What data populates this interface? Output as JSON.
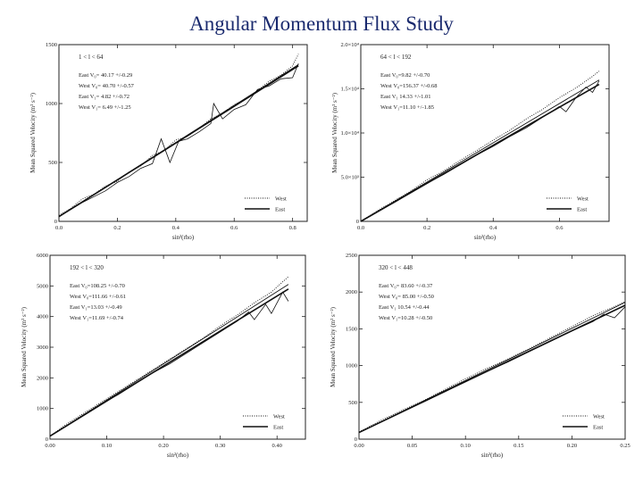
{
  "page": {
    "title": "Angular Momentum Flux Study"
  },
  "chart_data": [
    {
      "type": "line",
      "range_label": "1 < l < 64",
      "xlabel": "sin²(rho)",
      "ylabel": "Mean Squared Velocity (m² s⁻²)",
      "xlim": [
        0,
        0.85
      ],
      "ylim": [
        0,
        1500
      ],
      "xticks": [
        "0.0",
        "0.2",
        "0.4",
        "0.6",
        "0.8"
      ],
      "xtick_values": [
        0,
        0.2,
        0.4,
        0.6,
        0.8
      ],
      "yticks": [
        "0",
        "500",
        "1000",
        "1500"
      ],
      "ytick_values": [
        0,
        500,
        1000,
        1500
      ],
      "annotations": [
        "East V₀= 40.17 +/-0.29",
        "West V₀= 40.70 +/-0.57",
        "East V₁= 4.82 +/-0.72",
        "West V₁= 6.49 +/-1.25"
      ],
      "legend": [
        "West",
        "East"
      ],
      "legend_position": "bottom-right",
      "fit_lines": [
        {
          "name": "West",
          "x": [
            0,
            0.82
          ],
          "y": [
            40,
            1330
          ]
        },
        {
          "name": "East",
          "x": [
            0,
            0.82
          ],
          "y": [
            40,
            1320
          ]
        }
      ],
      "series": [
        {
          "name": "West",
          "style": "dotted",
          "x": [
            0,
            0.04,
            0.08,
            0.12,
            0.16,
            0.2,
            0.24,
            0.28,
            0.32,
            0.36,
            0.4,
            0.44,
            0.48,
            0.52,
            0.56,
            0.6,
            0.64,
            0.68,
            0.72,
            0.76,
            0.8,
            0.82
          ],
          "y": [
            50,
            110,
            190,
            230,
            300,
            340,
            420,
            470,
            560,
            600,
            690,
            720,
            790,
            870,
            920,
            990,
            1040,
            1110,
            1190,
            1240,
            1320,
            1420
          ]
        },
        {
          "name": "East",
          "style": "solid",
          "x": [
            0,
            0.04,
            0.08,
            0.12,
            0.16,
            0.2,
            0.24,
            0.28,
            0.32,
            0.35,
            0.38,
            0.41,
            0.44,
            0.48,
            0.52,
            0.53,
            0.56,
            0.6,
            0.64,
            0.68,
            0.72,
            0.76,
            0.8,
            0.82
          ],
          "y": [
            40,
            100,
            160,
            210,
            260,
            330,
            380,
            450,
            490,
            700,
            500,
            680,
            700,
            760,
            830,
            1000,
            870,
            950,
            990,
            1120,
            1150,
            1210,
            1220,
            1340
          ]
        }
      ]
    },
    {
      "type": "line",
      "range_label": "64 < l < 192",
      "xlabel": "sin²(rho)",
      "ylabel": "Mean Squared Velocity (m² s⁻²)",
      "xlim": [
        0,
        0.75
      ],
      "ylim": [
        0,
        20000
      ],
      "xticks": [
        "0.0",
        "0.2",
        "0.4",
        "0.6"
      ],
      "xtick_values": [
        0,
        0.2,
        0.4,
        0.6
      ],
      "yticks": [
        "0",
        "5.0×10³",
        "1.0×10⁴",
        "1.5×10⁴",
        "2.0×10⁴"
      ],
      "ytick_values": [
        0,
        5000,
        10000,
        15000,
        20000
      ],
      "annotations": [
        "East V₀=9.82 +/-0.70",
        "West V₀=156.37 +/-0.68",
        "East V₁ 14.33 +/-1.01",
        "West V₁=11.10 +/-1.85"
      ],
      "legend": [
        "West",
        "East"
      ],
      "legend_position": "bottom-right",
      "fit_lines": [
        {
          "name": "West",
          "x": [
            0,
            0.72
          ],
          "y": [
            0,
            16000
          ]
        },
        {
          "name": "East",
          "x": [
            0,
            0.72
          ],
          "y": [
            0,
            15500
          ]
        }
      ],
      "series": [
        {
          "name": "West",
          "style": "dotted",
          "x": [
            0,
            0.05,
            0.1,
            0.15,
            0.2,
            0.25,
            0.3,
            0.35,
            0.4,
            0.45,
            0.5,
            0.55,
            0.6,
            0.65,
            0.7,
            0.72
          ],
          "y": [
            0,
            1200,
            2300,
            3400,
            4700,
            5700,
            6900,
            8000,
            9200,
            10300,
            11600,
            12700,
            14000,
            15100,
            16400,
            17000
          ]
        },
        {
          "name": "East",
          "style": "solid",
          "x": [
            0,
            0.05,
            0.1,
            0.15,
            0.2,
            0.25,
            0.3,
            0.35,
            0.4,
            0.45,
            0.5,
            0.55,
            0.6,
            0.62,
            0.65,
            0.68,
            0.7,
            0.72
          ],
          "y": [
            0,
            1100,
            2100,
            3200,
            4300,
            5300,
            6400,
            7500,
            8500,
            9600,
            10600,
            11800,
            13000,
            12400,
            14000,
            15200,
            14600,
            15900
          ]
        }
      ]
    },
    {
      "type": "line",
      "range_label": "192 < l < 320",
      "xlabel": "sin²(rho)",
      "ylabel": "Mean Squared Velocity (m² s⁻²)",
      "xlim": [
        0,
        0.45
      ],
      "ylim": [
        0,
        6000
      ],
      "xticks": [
        "0.00",
        "0.10",
        "0.20",
        "0.30",
        "0.40"
      ],
      "xtick_values": [
        0,
        0.1,
        0.2,
        0.3,
        0.4
      ],
      "yticks": [
        "0",
        "1000",
        "2000",
        "3000",
        "4000",
        "5000",
        "6000"
      ],
      "ytick_values": [
        0,
        1000,
        2000,
        3000,
        4000,
        5000,
        6000
      ],
      "annotations": [
        "East V₀=108.25 +/-0.70",
        "West V₀=111.66 +/-0.61",
        "East V₁=13.03 +/-0.49",
        "West V₁=11.69 +/-0.74"
      ],
      "legend": [
        "West",
        "East"
      ],
      "legend_position": "bottom-right",
      "fit_lines": [
        {
          "name": "West",
          "x": [
            0,
            0.42
          ],
          "y": [
            100,
            5050
          ]
        },
        {
          "name": "East",
          "x": [
            0,
            0.42
          ],
          "y": [
            100,
            4900
          ]
        }
      ],
      "series": [
        {
          "name": "West",
          "style": "dotted",
          "x": [
            0,
            0.03,
            0.06,
            0.09,
            0.12,
            0.15,
            0.18,
            0.21,
            0.24,
            0.27,
            0.3,
            0.33,
            0.36,
            0.39,
            0.42
          ],
          "y": [
            100,
            500,
            850,
            1200,
            1550,
            1900,
            2250,
            2600,
            2950,
            3300,
            3700,
            4050,
            4450,
            4800,
            5300
          ]
        },
        {
          "name": "East",
          "style": "solid",
          "x": [
            0,
            0.03,
            0.06,
            0.09,
            0.12,
            0.15,
            0.18,
            0.21,
            0.24,
            0.27,
            0.3,
            0.33,
            0.35,
            0.36,
            0.38,
            0.39,
            0.41,
            0.42
          ],
          "y": [
            100,
            450,
            800,
            1150,
            1450,
            1800,
            2150,
            2450,
            2800,
            3150,
            3500,
            3850,
            4150,
            3900,
            4400,
            4100,
            4800,
            4500
          ]
        }
      ]
    },
    {
      "type": "line",
      "range_label": "320 < l < 448",
      "xlabel": "sin²(rho)",
      "ylabel": "Mean Squared Velocity (m² s⁻²)",
      "xlim": [
        0,
        0.25
      ],
      "ylim": [
        0,
        2500
      ],
      "xticks": [
        "0.00",
        "0.05",
        "0.10",
        "0.15",
        "0.20",
        "0.25"
      ],
      "xtick_values": [
        0,
        0.05,
        0.1,
        0.15,
        0.2,
        0.25
      ],
      "yticks": [
        "0",
        "500",
        "1000",
        "1500",
        "2000",
        "2500"
      ],
      "ytick_values": [
        0,
        500,
        1000,
        1500,
        2000,
        2500
      ],
      "annotations": [
        "East V₀= 83.60 +/-0.37",
        "West V₀= 85.00 +/-0.50",
        "East V₁ 10.54 +/-0.44",
        "West V₁=10.28 +/-0.50"
      ],
      "legend": [
        "West",
        "East"
      ],
      "legend_position": "bottom-right",
      "fit_lines": [
        {
          "name": "West",
          "x": [
            0,
            0.25
          ],
          "y": [
            90,
            1860
          ]
        },
        {
          "name": "East",
          "x": [
            0,
            0.25
          ],
          "y": [
            90,
            1820
          ]
        }
      ],
      "series": [
        {
          "name": "West",
          "style": "dotted",
          "x": [
            0,
            0.02,
            0.04,
            0.06,
            0.08,
            0.1,
            0.12,
            0.14,
            0.16,
            0.18,
            0.2,
            0.22,
            0.24,
            0.25
          ],
          "y": [
            100,
            250,
            390,
            520,
            670,
            820,
            960,
            1090,
            1230,
            1380,
            1530,
            1680,
            1800,
            1870
          ]
        },
        {
          "name": "East",
          "style": "solid",
          "x": [
            0,
            0.02,
            0.04,
            0.06,
            0.08,
            0.1,
            0.12,
            0.14,
            0.16,
            0.18,
            0.2,
            0.22,
            0.23,
            0.24,
            0.25
          ],
          "y": [
            90,
            230,
            370,
            500,
            640,
            790,
            920,
            1050,
            1190,
            1330,
            1470,
            1600,
            1700,
            1650,
            1800
          ]
        }
      ]
    }
  ]
}
